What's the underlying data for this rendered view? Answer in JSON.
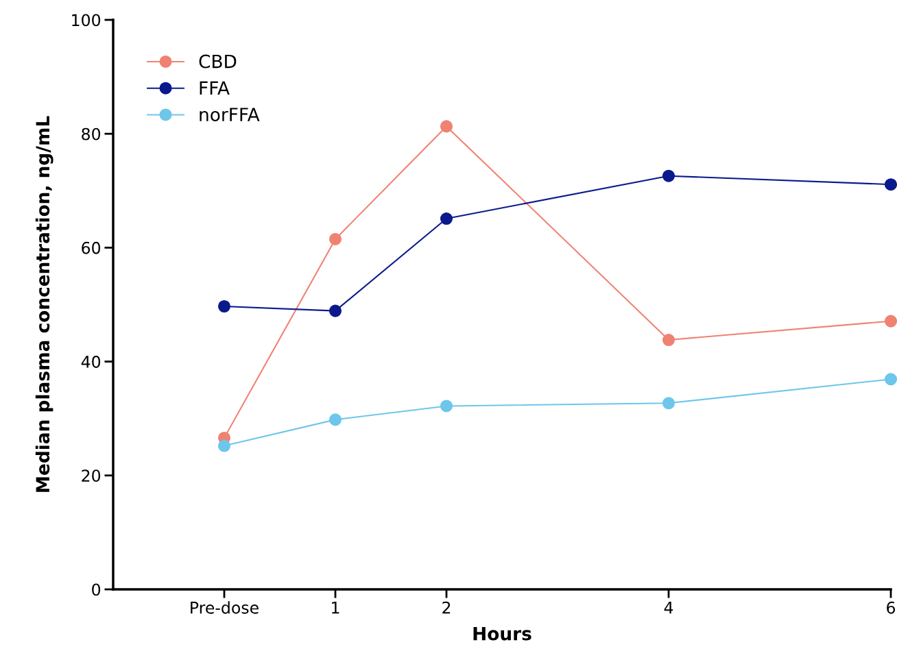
{
  "chart_data": {
    "type": "line",
    "xlabel": "Hours",
    "ylabel": "Median plasma concentration, ng/mL",
    "x": [
      0,
      1,
      2,
      4,
      6
    ],
    "series": [
      {
        "name": "CBD",
        "color": "#f08272",
        "values": [
          26.6,
          61.5,
          81.3,
          43.8,
          47.1
        ]
      },
      {
        "name": "FFA",
        "color": "#0a1a8c",
        "values": [
          49.7,
          48.9,
          65.1,
          72.6,
          71.1
        ]
      },
      {
        "name": "norFFA",
        "color": "#6ec6ea",
        "values": [
          25.2,
          29.8,
          32.2,
          32.7,
          36.9
        ]
      }
    ],
    "xlim": [
      -1,
      6
    ],
    "xticks": [
      {
        "value": 0,
        "label": "Pre-dose"
      },
      1,
      2,
      4,
      6
    ],
    "ylim": [
      0,
      100
    ],
    "yticks": [
      0,
      20,
      40,
      60,
      80,
      100
    ],
    "grid": false,
    "legend": "top left",
    "marker": "circle",
    "line_style": "solid"
  }
}
